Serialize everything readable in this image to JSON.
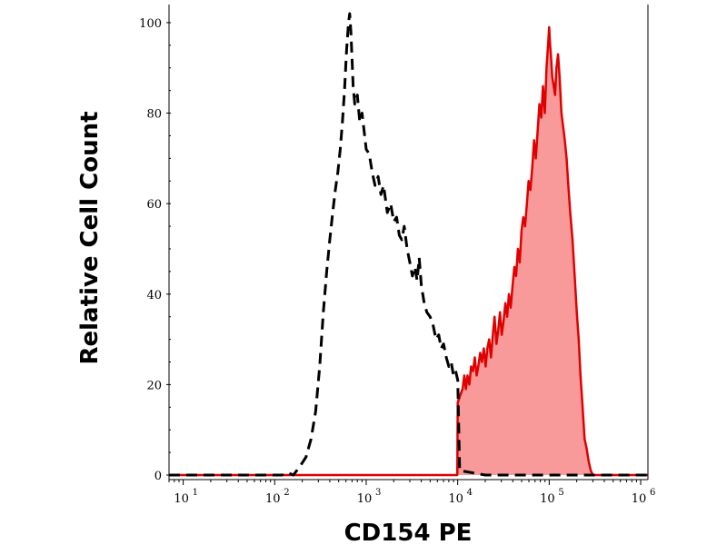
{
  "chart_data": {
    "type": "area",
    "xlabel": "CD154 PE",
    "ylabel": "Relative Cell Count",
    "xscale": "log",
    "xlim": [
      7,
      1200000
    ],
    "ylim": [
      -1,
      104
    ],
    "grid": false,
    "legend": "none",
    "yticks": [
      {
        "value": 0,
        "label": "0"
      },
      {
        "value": 20,
        "label": "20"
      },
      {
        "value": 40,
        "label": "40"
      },
      {
        "value": 60,
        "label": "60"
      },
      {
        "value": 80,
        "label": "80"
      },
      {
        "value": 100,
        "label": "100"
      }
    ],
    "xticks": [
      {
        "value": 10,
        "base": "10",
        "exp": "1"
      },
      {
        "value": 100,
        "base": "10",
        "exp": "2"
      },
      {
        "value": 1000,
        "base": "10",
        "exp": "3"
      },
      {
        "value": 10000,
        "base": "10",
        "exp": "4"
      },
      {
        "value": 100000,
        "base": "10",
        "exp": "5"
      },
      {
        "value": 1000000,
        "base": "10",
        "exp": "6"
      }
    ],
    "series": [
      {
        "style": "dashed",
        "color": "#000000",
        "fill": "none",
        "x": [
          7,
          120,
          140,
          160,
          190,
          220,
          250,
          280,
          310,
          340,
          370,
          400,
          430,
          460,
          490,
          520,
          550,
          580,
          610,
          640,
          660,
          680,
          700,
          720,
          750,
          800,
          850,
          900,
          950,
          1000,
          1080,
          1160,
          1250,
          1350,
          1450,
          1550,
          1700,
          1850,
          2000,
          2150,
          2300,
          2450,
          2600,
          2800,
          3000,
          3200,
          3400,
          3600,
          3800,
          4000,
          4300,
          4600,
          5000,
          5400,
          5800,
          6200,
          6600,
          7000,
          7500,
          8000,
          8500,
          9000,
          9500,
          10000,
          10500,
          20000,
          100000,
          500000,
          1200000
        ],
        "y": [
          0,
          0,
          0.5,
          0,
          2,
          4,
          8,
          14,
          24,
          36,
          45,
          52,
          58,
          63,
          67,
          72,
          78,
          85,
          94,
          100,
          102,
          98,
          92,
          86,
          82,
          84,
          78,
          80,
          76,
          72,
          71,
          67,
          64,
          66,
          62,
          64,
          58,
          60,
          56,
          57,
          53,
          52,
          55,
          50,
          47,
          44,
          46,
          43,
          48,
          42,
          38,
          36,
          35,
          33,
          30,
          31,
          28,
          29,
          26,
          24,
          25,
          22,
          23,
          21,
          1,
          0,
          0,
          0,
          0
        ]
      },
      {
        "style": "solid",
        "color": "#e00000",
        "fill": "#f99a9a",
        "x": [
          7,
          9900,
          10000,
          10400,
          10800,
          11300,
          11800,
          12300,
          12800,
          13400,
          14000,
          14700,
          15400,
          16100,
          16800,
          17600,
          18400,
          19300,
          20200,
          21100,
          22100,
          23100,
          24200,
          25300,
          26500,
          27700,
          29000,
          30300,
          31700,
          33200,
          34700,
          36300,
          38000,
          39800,
          41600,
          43500,
          45500,
          47600,
          49800,
          52100,
          54500,
          57000,
          59600,
          62400,
          65300,
          68300,
          71400,
          74700,
          78200,
          81800,
          85500,
          89500,
          93600,
          97900,
          100000,
          102500,
          105000,
          108000,
          112000,
          116000,
          120000,
          125000,
          130000,
          136000,
          142000,
          148000,
          155000,
          162000,
          170000,
          180000,
          190000,
          200000,
          210000,
          220000,
          232000,
          244000,
          256000,
          270000,
          285000,
          300000,
          320000,
          340000,
          360000,
          380000,
          400000,
          1200000
        ],
        "y": [
          0,
          0,
          16,
          17,
          18,
          19,
          22,
          19,
          22,
          20,
          24,
          23,
          26,
          22,
          24,
          27,
          25,
          28,
          24,
          28,
          30,
          26,
          31,
          35,
          29,
          32,
          36,
          31,
          34,
          38,
          35,
          40,
          37,
          42,
          46,
          44,
          50,
          47,
          54,
          57,
          55,
          60,
          65,
          63,
          68,
          74,
          70,
          76,
          82,
          79,
          86,
          80,
          90,
          96,
          99,
          95,
          92,
          88,
          86,
          84,
          90,
          93,
          88,
          80,
          77,
          74,
          70,
          64,
          58,
          52,
          44,
          36,
          30,
          22,
          15,
          8,
          6,
          3,
          1,
          0,
          0,
          0,
          0,
          0,
          0,
          0
        ]
      }
    ]
  }
}
